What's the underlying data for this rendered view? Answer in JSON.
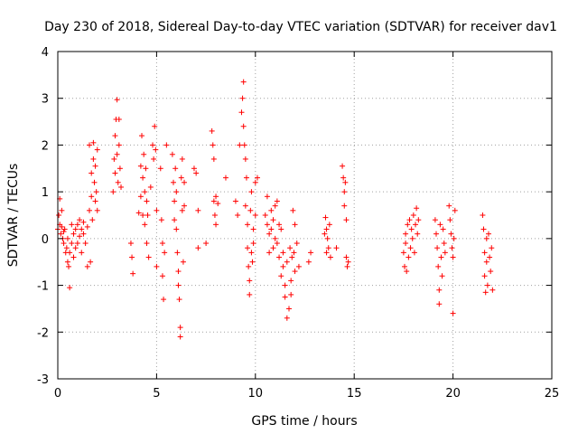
{
  "chart_data": {
    "type": "scatter",
    "title": "Day 230 of 2018, Sidereal Day-to-day VTEC variation (SDTVAR) for receiver dav1",
    "xlabel": "GPS time / hours",
    "ylabel": "SDTVAR / TECUs",
    "xlim": [
      0,
      25
    ],
    "ylim": [
      -3,
      4
    ],
    "xticks": [
      0,
      5,
      10,
      15,
      20,
      25
    ],
    "yticks": [
      -3,
      -2,
      -1,
      0,
      1,
      2,
      3,
      4
    ],
    "grid": true,
    "marker": "+",
    "color": "#ff0000",
    "series": [
      {
        "name": "SDTVAR",
        "points": [
          [
            0.0,
            0.2
          ],
          [
            0.05,
            0.5
          ],
          [
            0.1,
            0.85
          ],
          [
            0.1,
            0.3
          ],
          [
            0.15,
            0.1
          ],
          [
            0.2,
            0.25
          ],
          [
            0.2,
            0.6
          ],
          [
            0.25,
            0.0
          ],
          [
            0.3,
            0.15
          ],
          [
            0.3,
            -0.1
          ],
          [
            0.35,
            0.2
          ],
          [
            0.4,
            -0.3
          ],
          [
            0.45,
            -0.2
          ],
          [
            0.5,
            0.0
          ],
          [
            0.5,
            -0.5
          ],
          [
            0.55,
            -0.6
          ],
          [
            0.6,
            -1.05
          ],
          [
            0.6,
            -0.3
          ],
          [
            0.7,
            0.3
          ],
          [
            0.7,
            -0.1
          ],
          [
            0.8,
            0.1
          ],
          [
            0.8,
            -0.4
          ],
          [
            0.9,
            0.2
          ],
          [
            0.9,
            -0.2
          ],
          [
            1.0,
            0.3
          ],
          [
            1.0,
            -0.1
          ],
          [
            1.1,
            0.05
          ],
          [
            1.1,
            0.4
          ],
          [
            1.2,
            0.2
          ],
          [
            1.2,
            -0.3
          ],
          [
            1.3,
            0.1
          ],
          [
            1.3,
            0.35
          ],
          [
            1.4,
            -0.1
          ],
          [
            1.5,
            0.25
          ],
          [
            1.5,
            -0.6
          ],
          [
            1.6,
            2.0
          ],
          [
            1.6,
            0.6
          ],
          [
            1.65,
            -0.5
          ],
          [
            1.7,
            1.4
          ],
          [
            1.7,
            0.9
          ],
          [
            1.75,
            0.4
          ],
          [
            1.8,
            2.05
          ],
          [
            1.8,
            1.7
          ],
          [
            1.85,
            1.2
          ],
          [
            1.9,
            0.8
          ],
          [
            1.9,
            1.55
          ],
          [
            1.95,
            1.0
          ],
          [
            2.0,
            1.9
          ],
          [
            2.0,
            0.6
          ],
          [
            2.8,
            1.0
          ],
          [
            2.85,
            1.7
          ],
          [
            2.9,
            2.2
          ],
          [
            2.9,
            1.4
          ],
          [
            2.95,
            2.55
          ],
          [
            3.0,
            1.8
          ],
          [
            3.0,
            2.97
          ],
          [
            3.05,
            1.2
          ],
          [
            3.1,
            2.0
          ],
          [
            3.1,
            2.55
          ],
          [
            3.15,
            1.5
          ],
          [
            3.2,
            1.1
          ],
          [
            3.7,
            -0.1
          ],
          [
            3.75,
            -0.4
          ],
          [
            3.8,
            -0.75
          ],
          [
            4.1,
            0.55
          ],
          [
            4.2,
            1.55
          ],
          [
            4.2,
            0.9
          ],
          [
            4.25,
            2.2
          ],
          [
            4.3,
            1.3
          ],
          [
            4.3,
            0.5
          ],
          [
            4.35,
            1.8
          ],
          [
            4.4,
            1.0
          ],
          [
            4.4,
            0.3
          ],
          [
            4.45,
            1.5
          ],
          [
            4.5,
            0.8
          ],
          [
            4.5,
            -0.1
          ],
          [
            4.55,
            0.5
          ],
          [
            4.6,
            -0.4
          ],
          [
            4.7,
            1.1
          ],
          [
            4.8,
            2.0
          ],
          [
            4.85,
            1.7
          ],
          [
            4.9,
            2.4
          ],
          [
            4.95,
            1.9
          ],
          [
            5.0,
            0.6
          ],
          [
            5.0,
            -0.6
          ],
          [
            5.2,
            1.5
          ],
          [
            5.25,
            0.4
          ],
          [
            5.3,
            -0.1
          ],
          [
            5.3,
            -0.8
          ],
          [
            5.35,
            -1.3
          ],
          [
            5.4,
            -0.3
          ],
          [
            5.5,
            2.0
          ],
          [
            5.8,
            1.8
          ],
          [
            5.85,
            1.2
          ],
          [
            5.9,
            0.8
          ],
          [
            5.9,
            0.4
          ],
          [
            5.95,
            1.5
          ],
          [
            6.0,
            1.0
          ],
          [
            6.0,
            0.2
          ],
          [
            6.05,
            -0.3
          ],
          [
            6.1,
            -0.7
          ],
          [
            6.1,
            -1.0
          ],
          [
            6.15,
            -1.3
          ],
          [
            6.2,
            -1.9
          ],
          [
            6.2,
            -2.1
          ],
          [
            6.25,
            1.3
          ],
          [
            6.3,
            0.6
          ],
          [
            6.3,
            1.7
          ],
          [
            6.35,
            -0.5
          ],
          [
            6.4,
            1.2
          ],
          [
            6.4,
            0.7
          ],
          [
            6.9,
            1.5
          ],
          [
            7.0,
            1.4
          ],
          [
            7.1,
            0.6
          ],
          [
            7.1,
            -0.2
          ],
          [
            7.5,
            -0.1
          ],
          [
            7.8,
            2.3
          ],
          [
            7.85,
            2.0
          ],
          [
            7.9,
            1.7
          ],
          [
            7.9,
            0.8
          ],
          [
            7.95,
            0.5
          ],
          [
            8.0,
            0.9
          ],
          [
            8.0,
            0.3
          ],
          [
            8.1,
            0.75
          ],
          [
            8.5,
            1.3
          ],
          [
            9.0,
            0.8
          ],
          [
            9.1,
            0.5
          ],
          [
            9.2,
            2.0
          ],
          [
            9.3,
            2.7
          ],
          [
            9.35,
            3.0
          ],
          [
            9.4,
            3.35
          ],
          [
            9.4,
            2.4
          ],
          [
            9.45,
            2.0
          ],
          [
            9.5,
            1.7
          ],
          [
            9.5,
            0.7
          ],
          [
            9.55,
            1.3
          ],
          [
            9.6,
            0.3
          ],
          [
            9.6,
            -0.2
          ],
          [
            9.65,
            -0.6
          ],
          [
            9.7,
            -0.9
          ],
          [
            9.7,
            -1.2
          ],
          [
            9.75,
            0.6
          ],
          [
            9.8,
            1.0
          ],
          [
            9.8,
            -0.3
          ],
          [
            9.85,
            -0.5
          ],
          [
            9.9,
            0.2
          ],
          [
            9.9,
            -0.1
          ],
          [
            10.0,
            1.2
          ],
          [
            10.0,
            0.5
          ],
          [
            10.1,
            1.3
          ],
          [
            10.5,
            0.5
          ],
          [
            10.6,
            0.3
          ],
          [
            10.6,
            0.9
          ],
          [
            10.7,
            0.1
          ],
          [
            10.7,
            -0.3
          ],
          [
            10.8,
            0.6
          ],
          [
            10.8,
            0.2
          ],
          [
            10.9,
            0.4
          ],
          [
            10.9,
            -0.2
          ],
          [
            11.0,
            0.7
          ],
          [
            11.0,
            0.0
          ],
          [
            11.1,
            0.8
          ],
          [
            11.1,
            -0.1
          ],
          [
            11.2,
            0.3
          ],
          [
            11.2,
            -0.4
          ],
          [
            11.3,
            0.2
          ],
          [
            11.3,
            -0.8
          ],
          [
            11.4,
            -0.3
          ],
          [
            11.4,
            -0.6
          ],
          [
            11.5,
            -1.0
          ],
          [
            11.5,
            -1.25
          ],
          [
            11.6,
            -0.5
          ],
          [
            11.6,
            -1.7
          ],
          [
            11.7,
            -1.5
          ],
          [
            11.75,
            -0.2
          ],
          [
            11.8,
            -0.9
          ],
          [
            11.8,
            -1.2
          ],
          [
            11.85,
            -0.4
          ],
          [
            11.9,
            0.6
          ],
          [
            11.95,
            -0.3
          ],
          [
            12.0,
            0.3
          ],
          [
            12.0,
            -0.7
          ],
          [
            12.1,
            -0.1
          ],
          [
            12.2,
            -0.6
          ],
          [
            12.7,
            -0.5
          ],
          [
            12.8,
            -0.3
          ],
          [
            13.5,
            0.1
          ],
          [
            13.55,
            0.45
          ],
          [
            13.6,
            0.2
          ],
          [
            13.6,
            -0.3
          ],
          [
            13.65,
            0.0
          ],
          [
            13.7,
            -0.2
          ],
          [
            13.75,
            0.3
          ],
          [
            13.8,
            -0.4
          ],
          [
            14.1,
            -0.2
          ],
          [
            14.4,
            1.55
          ],
          [
            14.45,
            1.3
          ],
          [
            14.5,
            1.0
          ],
          [
            14.5,
            0.7
          ],
          [
            14.55,
            1.2
          ],
          [
            14.6,
            0.4
          ],
          [
            14.6,
            -0.4
          ],
          [
            14.65,
            -0.6
          ],
          [
            14.7,
            -0.5
          ],
          [
            17.5,
            -0.3
          ],
          [
            17.55,
            -0.6
          ],
          [
            17.6,
            0.1
          ],
          [
            17.6,
            -0.1
          ],
          [
            17.65,
            -0.7
          ],
          [
            17.7,
            0.3
          ],
          [
            17.75,
            -0.4
          ],
          [
            17.8,
            0.4
          ],
          [
            17.85,
            -0.2
          ],
          [
            17.9,
            0.2
          ],
          [
            17.95,
            0.0
          ],
          [
            18.0,
            0.5
          ],
          [
            18.05,
            -0.3
          ],
          [
            18.1,
            0.3
          ],
          [
            18.15,
            0.65
          ],
          [
            18.2,
            0.1
          ],
          [
            18.25,
            0.4
          ],
          [
            19.1,
            0.4
          ],
          [
            19.15,
            0.1
          ],
          [
            19.2,
            -0.2
          ],
          [
            19.25,
            -0.6
          ],
          [
            19.3,
            -1.1
          ],
          [
            19.3,
            -1.4
          ],
          [
            19.35,
            0.3
          ],
          [
            19.4,
            -0.4
          ],
          [
            19.45,
            -0.8
          ],
          [
            19.5,
            0.2
          ],
          [
            19.55,
            -0.1
          ],
          [
            19.6,
            -0.3
          ],
          [
            19.8,
            0.7
          ],
          [
            19.85,
            0.4
          ],
          [
            19.9,
            0.1
          ],
          [
            19.95,
            -0.2
          ],
          [
            20.0,
            -0.4
          ],
          [
            20.0,
            -1.6
          ],
          [
            20.05,
            0.0
          ],
          [
            20.1,
            0.6
          ],
          [
            21.5,
            0.5
          ],
          [
            21.55,
            0.2
          ],
          [
            21.6,
            -0.3
          ],
          [
            21.6,
            -0.8
          ],
          [
            21.65,
            -1.15
          ],
          [
            21.7,
            0.0
          ],
          [
            21.7,
            -0.5
          ],
          [
            21.75,
            -1.0
          ],
          [
            21.8,
            0.1
          ],
          [
            21.85,
            -0.4
          ],
          [
            21.9,
            -0.7
          ],
          [
            21.95,
            -0.2
          ],
          [
            22.0,
            -1.1
          ]
        ]
      }
    ]
  }
}
